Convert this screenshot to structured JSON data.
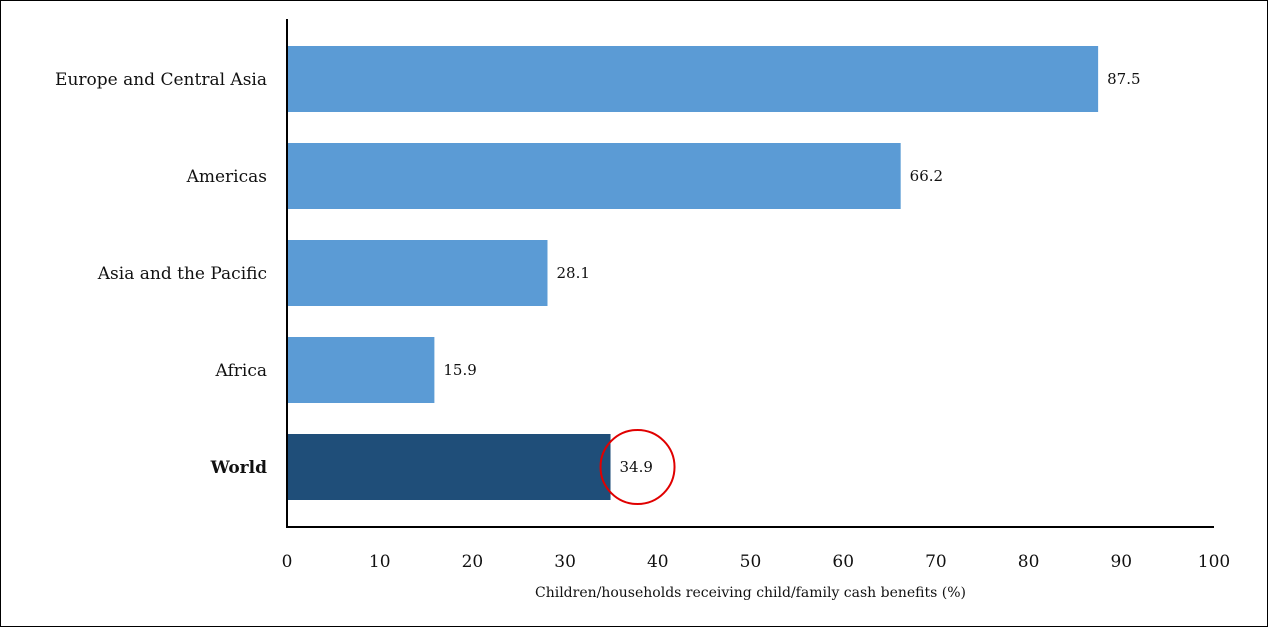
{
  "chart_data": {
    "type": "bar",
    "orientation": "horizontal",
    "categories": [
      "Europe and Central Asia",
      "Americas",
      "Asia and the Pacific",
      "Africa",
      "World"
    ],
    "values": [
      87.5,
      66.2,
      28.1,
      15.9,
      34.9
    ],
    "value_labels": [
      "87.5",
      "66.2",
      "28.1",
      "15.9",
      "34.9"
    ],
    "bold_categories": [
      "World"
    ],
    "highlighted_category": "World",
    "xlabel": "Children/households receiving child/family cash benefits (%)",
    "ylabel": "",
    "xlim": [
      0,
      100
    ],
    "xticks": [
      0,
      10,
      20,
      30,
      40,
      50,
      60,
      70,
      80,
      90,
      100
    ],
    "xtick_labels": [
      "0",
      "10",
      "20",
      "30",
      "40",
      "50",
      "60",
      "70",
      "80",
      "90",
      "100"
    ],
    "grid": false,
    "legend": "none",
    "colors": {
      "regional_bar": "#5B9BD5",
      "world_bar": "#1F4E79",
      "highlight_circle": "#E00000",
      "axis": "#000000",
      "text": "#111111"
    }
  }
}
